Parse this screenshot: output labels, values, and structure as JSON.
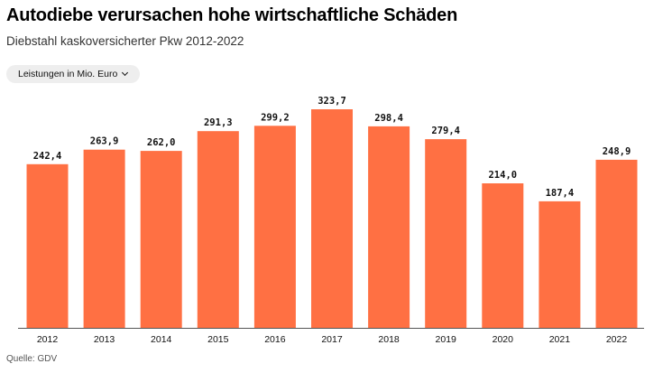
{
  "title": "Autodiebe verursachen hohe wirtschaftliche Schäden",
  "subtitle": "Diebstahl kaskoversicherter Pkw 2012-2022",
  "dropdown": {
    "label": "Leistungen in Mio. Euro",
    "icon": "chevron-down-icon"
  },
  "source": "Quelle: GDV",
  "colors": {
    "bar": "#ff7043",
    "baseline": "#555555"
  },
  "chart_data": {
    "type": "bar",
    "categories": [
      "2012",
      "2013",
      "2014",
      "2015",
      "2016",
      "2017",
      "2018",
      "2019",
      "2020",
      "2021",
      "2022"
    ],
    "values": [
      242.4,
      263.9,
      262.0,
      291.3,
      299.2,
      323.7,
      298.4,
      279.4,
      214.0,
      187.4,
      248.9
    ],
    "value_labels": [
      "242,4",
      "263,9",
      "262,0",
      "291,3",
      "299,2",
      "323,7",
      "298,4",
      "279,4",
      "214,0",
      "187,4",
      "248,9"
    ],
    "ylim": [
      0,
      323.7
    ],
    "grid": false,
    "legend": "none"
  }
}
